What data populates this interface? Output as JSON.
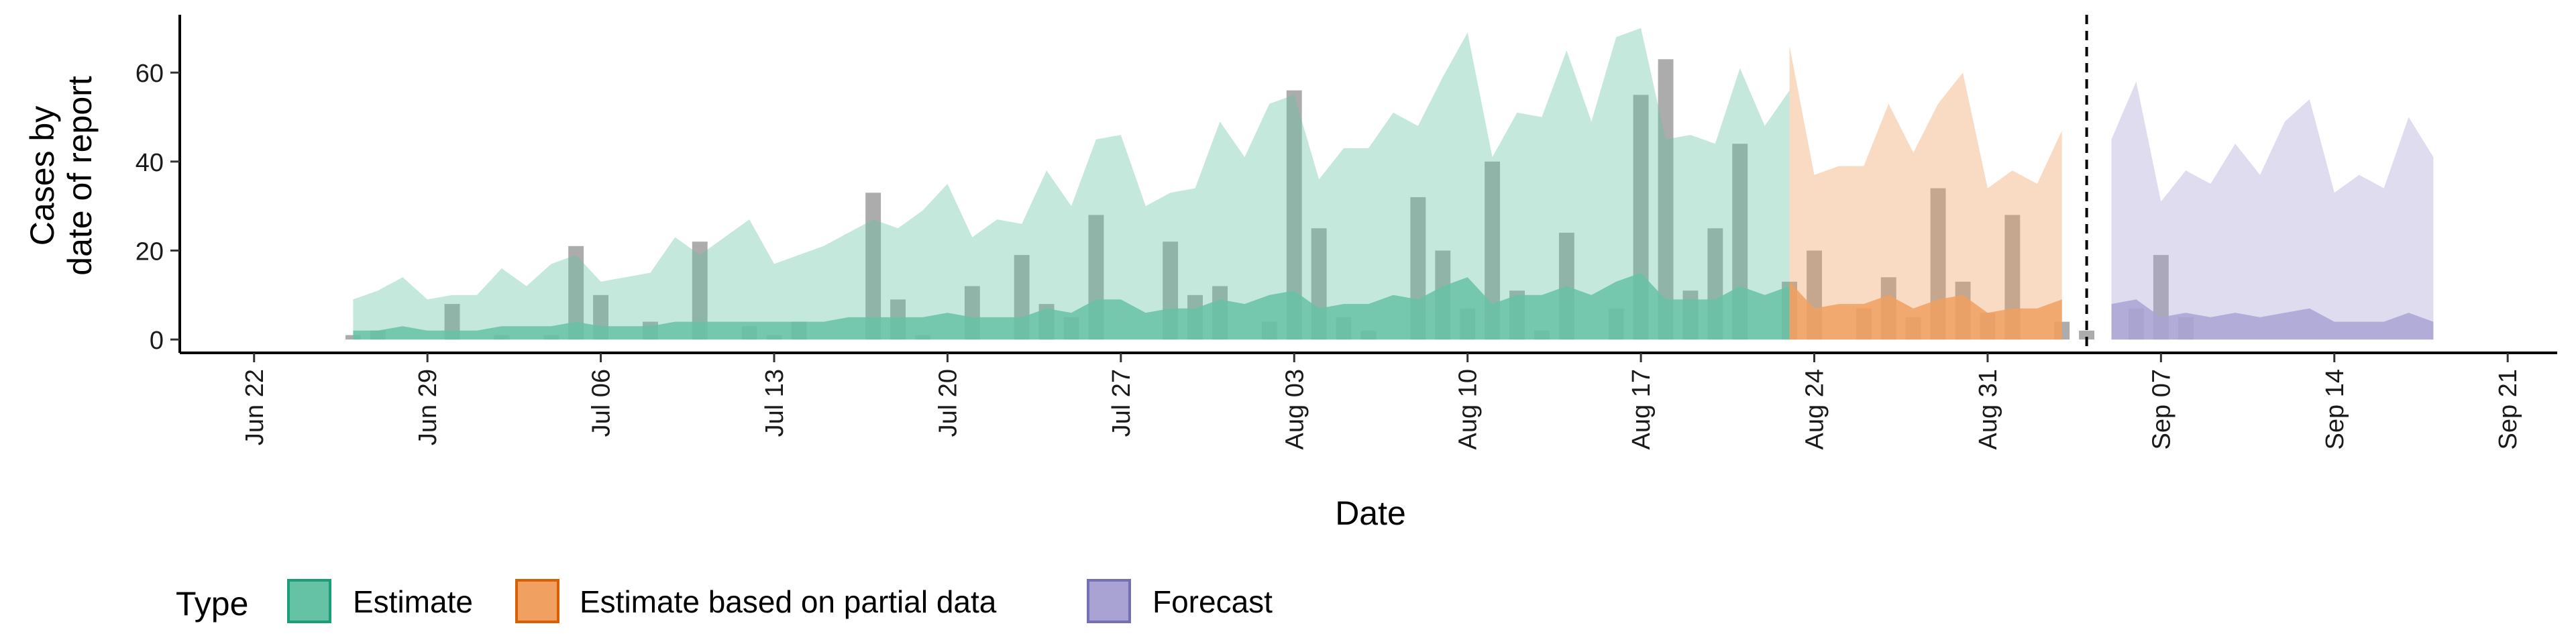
{
  "chart_data": {
    "type": "area",
    "xlabel": "Date",
    "ylabel_lines": [
      "Cases by",
      "date of report"
    ],
    "x_range": [
      "2020-06-19",
      "2020-09-23"
    ],
    "ylim": [
      -3,
      73
    ],
    "y_ticks": [
      0,
      20,
      40,
      60
    ],
    "x_ticks": [
      {
        "date": "2020-06-22",
        "label": "Jun 22"
      },
      {
        "date": "2020-06-29",
        "label": "Jun 29"
      },
      {
        "date": "2020-07-06",
        "label": "Jul 06"
      },
      {
        "date": "2020-07-13",
        "label": "Jul 13"
      },
      {
        "date": "2020-07-20",
        "label": "Jul 20"
      },
      {
        "date": "2020-07-27",
        "label": "Jul 27"
      },
      {
        "date": "2020-08-03",
        "label": "Aug 03"
      },
      {
        "date": "2020-08-10",
        "label": "Aug 10"
      },
      {
        "date": "2020-08-17",
        "label": "Aug 17"
      },
      {
        "date": "2020-08-24",
        "label": "Aug 24"
      },
      {
        "date": "2020-08-31",
        "label": "Aug 31"
      },
      {
        "date": "2020-09-07",
        "label": "Sep 07"
      },
      {
        "date": "2020-09-14",
        "label": "Sep 14"
      },
      {
        "date": "2020-09-21",
        "label": "Sep 21"
      }
    ],
    "vline_date": "2020-09-04",
    "grid": false,
    "legend": {
      "title": "Type",
      "placement": "bottom",
      "entries": [
        {
          "label": "Estimate",
          "fill": "#66C2A5",
          "stroke": "#1B9E77"
        },
        {
          "label": "Estimate based on partial data",
          "fill": "#F0A060",
          "stroke": "#D95F02"
        },
        {
          "label": "Forecast",
          "fill": "#A9A3D3",
          "stroke": "#7570B3"
        }
      ]
    },
    "bars": {
      "color": "#9E9E9E",
      "start": "2020-06-26",
      "values": [
        1,
        2,
        0,
        0,
        8,
        0,
        1,
        0,
        1,
        21,
        10,
        0,
        4,
        0,
        22,
        0,
        3,
        1,
        4,
        0,
        0,
        33,
        9,
        1,
        0,
        12,
        0,
        19,
        8,
        5,
        28,
        0,
        0,
        22,
        10,
        12,
        0,
        4,
        56,
        25,
        5,
        2,
        0,
        32,
        20,
        7,
        40,
        11,
        2,
        24,
        0,
        7,
        55,
        63,
        11,
        25,
        44,
        0,
        13,
        20,
        0,
        7,
        14,
        5,
        34,
        13,
        6,
        28,
        0,
        4,
        2,
        0,
        7,
        19,
        5
      ]
    },
    "series": [
      {
        "name": "Estimate",
        "start": "2020-06-26",
        "upper": [
          9,
          11,
          14,
          9,
          10,
          10,
          16,
          12,
          17,
          19,
          13,
          14,
          15,
          23,
          19,
          23,
          27,
          17,
          19,
          21,
          24,
          27,
          25,
          29,
          35,
          23,
          27,
          26,
          38,
          30,
          45,
          46,
          30,
          33,
          34,
          49,
          41,
          53,
          55,
          36,
          43,
          43,
          51,
          48,
          59,
          69,
          41,
          51,
          50,
          65,
          49,
          68,
          70,
          45,
          46,
          44,
          61,
          48,
          56
        ],
        "lower": [
          0,
          0,
          0,
          0,
          0,
          0,
          0,
          0,
          0,
          0,
          0,
          0,
          0,
          0,
          0,
          0,
          0,
          0,
          0,
          0,
          0,
          0,
          0,
          0,
          0,
          0,
          0,
          0,
          0,
          0,
          0,
          0,
          0,
          0,
          0,
          0,
          0,
          0,
          0,
          0,
          0,
          0,
          0,
          0,
          0,
          0,
          0,
          0,
          0,
          0,
          0,
          0,
          0,
          0,
          0,
          0,
          0,
          0,
          0
        ],
        "inner_upper": [
          2,
          2,
          3,
          2,
          2,
          2,
          3,
          3,
          3,
          4,
          3,
          3,
          3,
          4,
          4,
          4,
          4,
          4,
          4,
          4,
          5,
          5,
          5,
          5,
          6,
          5,
          5,
          5,
          7,
          6,
          9,
          9,
          6,
          7,
          7,
          9,
          8,
          10,
          11,
          7,
          8,
          8,
          10,
          9,
          12,
          14,
          8,
          10,
          10,
          12,
          10,
          13,
          15,
          9,
          9,
          9,
          12,
          10,
          12
        ],
        "inner_lower": [
          0,
          0,
          0,
          0,
          0,
          0,
          0,
          0,
          0,
          0,
          0,
          0,
          0,
          0,
          0,
          0,
          0,
          0,
          0,
          0,
          0,
          0,
          0,
          0,
          0,
          0,
          0,
          0,
          0,
          0,
          0,
          0,
          0,
          0,
          0,
          0,
          0,
          0,
          0,
          0,
          0,
          0,
          0,
          0,
          0,
          0,
          0,
          0,
          0,
          0,
          0,
          0,
          0,
          0,
          0,
          0,
          0,
          0,
          0
        ]
      },
      {
        "name": "Estimate based on partial data",
        "start": "2020-08-23",
        "upper": [
          66,
          37,
          39,
          39,
          53,
          42,
          53,
          60,
          34,
          38,
          35,
          47
        ],
        "lower": [
          0,
          0,
          0,
          0,
          0,
          0,
          0,
          0,
          0,
          0,
          0,
          0
        ],
        "inner_upper": [
          13,
          7,
          8,
          8,
          10,
          7,
          9,
          10,
          6,
          7,
          7,
          9
        ],
        "inner_lower": [
          0,
          0,
          0,
          0,
          0,
          0,
          0,
          0,
          0,
          0,
          0,
          0
        ]
      },
      {
        "name": "Forecast",
        "start": "2020-09-05",
        "upper": [
          45,
          58,
          31,
          38,
          35,
          44,
          37,
          49,
          54,
          33,
          37,
          34,
          50,
          41
        ],
        "lower": [
          0,
          0,
          0,
          0,
          0,
          0,
          0,
          0,
          0,
          0,
          0,
          0,
          0,
          0
        ],
        "inner_upper": [
          8,
          9,
          5,
          6,
          5,
          6,
          5,
          6,
          7,
          4,
          4,
          4,
          6,
          4
        ],
        "inner_lower": [
          0,
          0,
          0,
          0,
          0,
          0,
          0,
          0,
          0,
          0,
          0,
          0,
          0,
          0
        ]
      }
    ]
  }
}
